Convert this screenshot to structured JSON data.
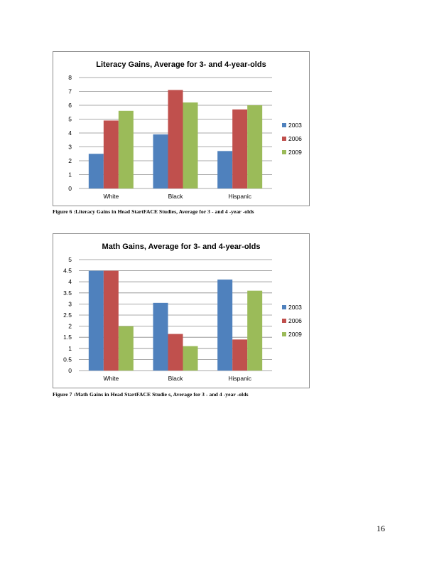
{
  "chart_data": [
    {
      "type": "bar",
      "title": "Literacy Gains, Average for 3- and 4-year-olds",
      "categories": [
        "White",
        "Black",
        "Hispanic"
      ],
      "series": [
        {
          "name": "2003",
          "values": [
            2.5,
            3.9,
            2.7
          ],
          "color": "#4f81bd"
        },
        {
          "name": "2006",
          "values": [
            4.9,
            7.1,
            5.7
          ],
          "color": "#c0504d"
        },
        {
          "name": "2009",
          "values": [
            5.6,
            6.2,
            6.0
          ],
          "color": "#9bbb59"
        }
      ],
      "ylim": [
        0,
        8
      ],
      "yticks": [
        "0",
        "1",
        "2",
        "3",
        "4",
        "5",
        "6",
        "7",
        "8"
      ],
      "grid": true,
      "legend": "right"
    },
    {
      "type": "bar",
      "title": "Math Gains, Average for 3- and 4-year-olds",
      "categories": [
        "White",
        "Black",
        "Hispanic"
      ],
      "series": [
        {
          "name": "2003",
          "values": [
            4.5,
            3.05,
            4.1
          ],
          "color": "#4f81bd"
        },
        {
          "name": "2006",
          "values": [
            4.5,
            1.65,
            1.4
          ],
          "color": "#c0504d"
        },
        {
          "name": "2009",
          "values": [
            2.0,
            1.1,
            3.6
          ],
          "color": "#9bbb59"
        }
      ],
      "ylim": [
        0,
        5
      ],
      "yticks": [
        "0",
        "0.5",
        "1",
        "1.5",
        "2",
        "2.5",
        "3",
        "3.5",
        "4",
        "4.5",
        "5"
      ],
      "grid": true,
      "legend": "right"
    }
  ],
  "captions": [
    "Figure    6 :Literacy       Gains     in   Head    StartFACE      Studies,      Average       for    3  -  and    4 -year   -olds",
    "Figure    7 :Math        Gains     in   Head    StartFACE      Studie    s,  Average       for    3 -  and    4 -year   -olds"
  ],
  "page_number": "16"
}
